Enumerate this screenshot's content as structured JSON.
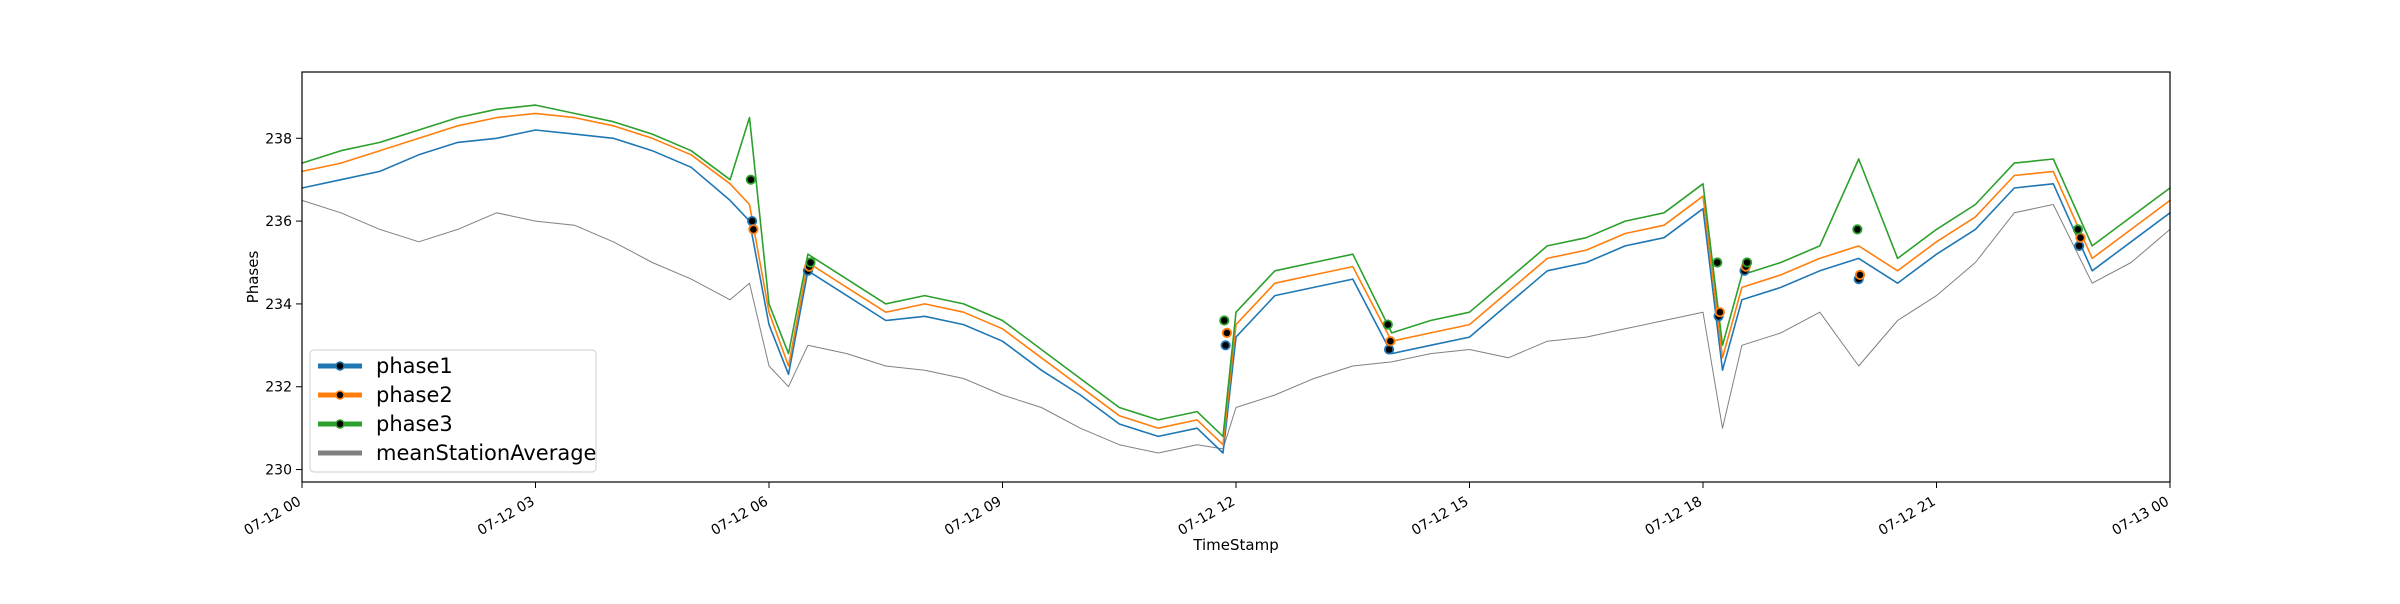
{
  "chart_data": {
    "type": "line",
    "title": "",
    "xlabel": "TimeStamp",
    "ylabel": "Phases",
    "x_range": [
      "2024-07-12T00:00",
      "2024-07-13T00:00"
    ],
    "ylim": [
      229.7,
      239.6
    ],
    "x_ticks": [
      {
        "value": "2024-07-12T00:00",
        "label": "07-12 00"
      },
      {
        "value": "2024-07-12T03:00",
        "label": "07-12 03"
      },
      {
        "value": "2024-07-12T06:00",
        "label": "07-12 06"
      },
      {
        "value": "2024-07-12T09:00",
        "label": "07-12 09"
      },
      {
        "value": "2024-07-12T12:00",
        "label": "07-12 12"
      },
      {
        "value": "2024-07-12T15:00",
        "label": "07-12 15"
      },
      {
        "value": "2024-07-12T18:00",
        "label": "07-12 18"
      },
      {
        "value": "2024-07-12T21:00",
        "label": "07-12 21"
      },
      {
        "value": "2024-07-13T00:00",
        "label": "07-13 00"
      }
    ],
    "y_ticks": [
      {
        "value": 230,
        "label": "230"
      },
      {
        "value": 232,
        "label": "232"
      },
      {
        "value": 234,
        "label": "234"
      },
      {
        "value": 236,
        "label": "236"
      },
      {
        "value": 238,
        "label": "238"
      }
    ],
    "grid": false,
    "legend_position": "lower-left",
    "series": [
      {
        "name": "phase1",
        "color": "#1f77b4",
        "x": [
          "2024-07-12T00:00",
          "2024-07-12T00:30",
          "2024-07-12T01:00",
          "2024-07-12T01:30",
          "2024-07-12T02:00",
          "2024-07-12T02:30",
          "2024-07-12T03:00",
          "2024-07-12T03:30",
          "2024-07-12T04:00",
          "2024-07-12T04:30",
          "2024-07-12T05:00",
          "2024-07-12T05:30",
          "2024-07-12T05:45",
          "2024-07-12T06:00",
          "2024-07-12T06:15",
          "2024-07-12T06:30",
          "2024-07-12T07:00",
          "2024-07-12T07:30",
          "2024-07-12T08:00",
          "2024-07-12T08:30",
          "2024-07-12T09:00",
          "2024-07-12T09:30",
          "2024-07-12T10:00",
          "2024-07-12T10:30",
          "2024-07-12T11:00",
          "2024-07-12T11:30",
          "2024-07-12T11:50",
          "2024-07-12T12:00",
          "2024-07-12T12:30",
          "2024-07-12T13:00",
          "2024-07-12T13:30",
          "2024-07-12T14:00",
          "2024-07-12T14:30",
          "2024-07-12T15:00",
          "2024-07-12T15:30",
          "2024-07-12T16:00",
          "2024-07-12T16:30",
          "2024-07-12T17:00",
          "2024-07-12T17:30",
          "2024-07-12T18:00",
          "2024-07-12T18:15",
          "2024-07-12T18:30",
          "2024-07-12T19:00",
          "2024-07-12T19:30",
          "2024-07-12T20:00",
          "2024-07-12T20:30",
          "2024-07-12T21:00",
          "2024-07-12T21:30",
          "2024-07-12T22:00",
          "2024-07-12T22:30",
          "2024-07-12T23:00",
          "2024-07-12T23:30",
          "2024-07-13T00:00"
        ],
        "values": [
          236.8,
          237.0,
          237.2,
          237.6,
          237.9,
          238.0,
          238.2,
          238.1,
          238.0,
          237.7,
          237.3,
          236.5,
          236.0,
          233.5,
          232.3,
          234.8,
          234.2,
          233.6,
          233.7,
          233.5,
          233.1,
          232.4,
          231.8,
          231.1,
          230.8,
          231.0,
          230.4,
          233.2,
          234.2,
          234.4,
          234.6,
          232.8,
          233.0,
          233.2,
          234.0,
          234.8,
          235.0,
          235.4,
          235.6,
          236.3,
          232.4,
          234.1,
          234.4,
          234.8,
          235.1,
          234.5,
          235.2,
          235.8,
          236.8,
          236.9,
          234.8,
          235.5,
          236.2
        ],
        "marker_points": [
          {
            "x": "2024-07-12T05:47",
            "y": 236.0
          },
          {
            "x": "2024-07-12T06:30",
            "y": 234.8
          },
          {
            "x": "2024-07-12T11:52",
            "y": 233.0
          },
          {
            "x": "2024-07-12T13:58",
            "y": 232.9
          },
          {
            "x": "2024-07-12T18:12",
            "y": 233.7
          },
          {
            "x": "2024-07-12T18:32",
            "y": 234.8
          },
          {
            "x": "2024-07-12T20:00",
            "y": 234.6
          },
          {
            "x": "2024-07-12T22:50",
            "y": 235.4
          }
        ]
      },
      {
        "name": "phase2",
        "color": "#ff7f0e",
        "x": [
          "2024-07-12T00:00",
          "2024-07-12T00:30",
          "2024-07-12T01:00",
          "2024-07-12T01:30",
          "2024-07-12T02:00",
          "2024-07-12T02:30",
          "2024-07-12T03:00",
          "2024-07-12T03:30",
          "2024-07-12T04:00",
          "2024-07-12T04:30",
          "2024-07-12T05:00",
          "2024-07-12T05:30",
          "2024-07-12T05:45",
          "2024-07-12T06:00",
          "2024-07-12T06:15",
          "2024-07-12T06:30",
          "2024-07-12T07:00",
          "2024-07-12T07:30",
          "2024-07-12T08:00",
          "2024-07-12T08:30",
          "2024-07-12T09:00",
          "2024-07-12T09:30",
          "2024-07-12T10:00",
          "2024-07-12T10:30",
          "2024-07-12T11:00",
          "2024-07-12T11:30",
          "2024-07-12T11:50",
          "2024-07-12T12:00",
          "2024-07-12T12:30",
          "2024-07-12T13:00",
          "2024-07-12T13:30",
          "2024-07-12T14:00",
          "2024-07-12T14:30",
          "2024-07-12T15:00",
          "2024-07-12T15:30",
          "2024-07-12T16:00",
          "2024-07-12T16:30",
          "2024-07-12T17:00",
          "2024-07-12T17:30",
          "2024-07-12T18:00",
          "2024-07-12T18:15",
          "2024-07-12T18:30",
          "2024-07-12T19:00",
          "2024-07-12T19:30",
          "2024-07-12T20:00",
          "2024-07-12T20:30",
          "2024-07-12T21:00",
          "2024-07-12T21:30",
          "2024-07-12T22:00",
          "2024-07-12T22:30",
          "2024-07-12T23:00",
          "2024-07-12T23:30",
          "2024-07-13T00:00"
        ],
        "values": [
          237.2,
          237.4,
          237.7,
          238.0,
          238.3,
          238.5,
          238.6,
          238.5,
          238.3,
          238.0,
          237.6,
          236.9,
          236.4,
          233.8,
          232.5,
          235.0,
          234.4,
          233.8,
          234.0,
          233.8,
          233.4,
          232.7,
          232.0,
          231.3,
          231.0,
          231.2,
          230.6,
          233.5,
          234.5,
          234.7,
          234.9,
          233.1,
          233.3,
          233.5,
          234.3,
          235.1,
          235.3,
          235.7,
          235.9,
          236.6,
          232.7,
          234.4,
          234.7,
          235.1,
          235.4,
          234.8,
          235.5,
          236.1,
          237.1,
          237.2,
          235.1,
          235.8,
          236.5
        ],
        "marker_points": [
          {
            "x": "2024-07-12T05:48",
            "y": 235.8
          },
          {
            "x": "2024-07-12T06:31",
            "y": 234.9
          },
          {
            "x": "2024-07-12T11:53",
            "y": 233.3
          },
          {
            "x": "2024-07-12T13:59",
            "y": 233.1
          },
          {
            "x": "2024-07-12T18:13",
            "y": 233.8
          },
          {
            "x": "2024-07-12T18:33",
            "y": 234.9
          },
          {
            "x": "2024-07-12T20:01",
            "y": 234.7
          },
          {
            "x": "2024-07-12T22:51",
            "y": 235.6
          }
        ]
      },
      {
        "name": "phase3",
        "color": "#2ca02c",
        "x": [
          "2024-07-12T00:00",
          "2024-07-12T00:30",
          "2024-07-12T01:00",
          "2024-07-12T01:30",
          "2024-07-12T02:00",
          "2024-07-12T02:30",
          "2024-07-12T03:00",
          "2024-07-12T03:30",
          "2024-07-12T04:00",
          "2024-07-12T04:30",
          "2024-07-12T05:00",
          "2024-07-12T05:30",
          "2024-07-12T05:45",
          "2024-07-12T06:00",
          "2024-07-12T06:15",
          "2024-07-12T06:30",
          "2024-07-12T07:00",
          "2024-07-12T07:30",
          "2024-07-12T08:00",
          "2024-07-12T08:30",
          "2024-07-12T09:00",
          "2024-07-12T09:30",
          "2024-07-12T10:00",
          "2024-07-12T10:30",
          "2024-07-12T11:00",
          "2024-07-12T11:30",
          "2024-07-12T11:50",
          "2024-07-12T12:00",
          "2024-07-12T12:30",
          "2024-07-12T13:00",
          "2024-07-12T13:30",
          "2024-07-12T14:00",
          "2024-07-12T14:30",
          "2024-07-12T15:00",
          "2024-07-12T15:30",
          "2024-07-12T16:00",
          "2024-07-12T16:30",
          "2024-07-12T17:00",
          "2024-07-12T17:30",
          "2024-07-12T18:00",
          "2024-07-12T18:15",
          "2024-07-12T18:30",
          "2024-07-12T19:00",
          "2024-07-12T19:30",
          "2024-07-12T20:00",
          "2024-07-12T20:30",
          "2024-07-12T21:00",
          "2024-07-12T21:30",
          "2024-07-12T22:00",
          "2024-07-12T22:30",
          "2024-07-12T23:00",
          "2024-07-12T23:30",
          "2024-07-13T00:00"
        ],
        "values": [
          237.4,
          237.7,
          237.9,
          238.2,
          238.5,
          238.7,
          238.8,
          238.6,
          238.4,
          238.1,
          237.7,
          237.0,
          238.5,
          234.0,
          232.8,
          235.2,
          234.6,
          234.0,
          234.2,
          234.0,
          233.6,
          232.9,
          232.2,
          231.5,
          231.2,
          231.4,
          230.8,
          233.8,
          234.8,
          235.0,
          235.2,
          233.3,
          233.6,
          233.8,
          234.6,
          235.4,
          235.6,
          236.0,
          236.2,
          236.9,
          233.0,
          234.7,
          235.0,
          235.4,
          237.5,
          235.1,
          235.8,
          236.4,
          237.4,
          237.5,
          235.4,
          236.1,
          236.8
        ],
        "marker_points": [
          {
            "x": "2024-07-12T05:46",
            "y": 237.0
          },
          {
            "x": "2024-07-12T06:32",
            "y": 235.0
          },
          {
            "x": "2024-07-12T11:51",
            "y": 233.6
          },
          {
            "x": "2024-07-12T13:57",
            "y": 233.5
          },
          {
            "x": "2024-07-12T18:11",
            "y": 235.0
          },
          {
            "x": "2024-07-12T18:34",
            "y": 235.0
          },
          {
            "x": "2024-07-12T19:59",
            "y": 235.8
          },
          {
            "x": "2024-07-12T22:49",
            "y": 235.8
          }
        ]
      },
      {
        "name": "meanStationAverage",
        "color": "#808080",
        "x": [
          "2024-07-12T00:00",
          "2024-07-12T00:30",
          "2024-07-12T01:00",
          "2024-07-12T01:30",
          "2024-07-12T02:00",
          "2024-07-12T02:30",
          "2024-07-12T03:00",
          "2024-07-12T03:30",
          "2024-07-12T04:00",
          "2024-07-12T04:30",
          "2024-07-12T05:00",
          "2024-07-12T05:30",
          "2024-07-12T05:45",
          "2024-07-12T06:00",
          "2024-07-12T06:15",
          "2024-07-12T06:30",
          "2024-07-12T07:00",
          "2024-07-12T07:30",
          "2024-07-12T08:00",
          "2024-07-12T08:30",
          "2024-07-12T09:00",
          "2024-07-12T09:30",
          "2024-07-12T10:00",
          "2024-07-12T10:30",
          "2024-07-12T11:00",
          "2024-07-12T11:30",
          "2024-07-12T11:50",
          "2024-07-12T12:00",
          "2024-07-12T12:30",
          "2024-07-12T13:00",
          "2024-07-12T13:30",
          "2024-07-12T14:00",
          "2024-07-12T14:30",
          "2024-07-12T15:00",
          "2024-07-12T15:30",
          "2024-07-12T16:00",
          "2024-07-12T16:30",
          "2024-07-12T17:00",
          "2024-07-12T17:30",
          "2024-07-12T18:00",
          "2024-07-12T18:15",
          "2024-07-12T18:30",
          "2024-07-12T19:00",
          "2024-07-12T19:30",
          "2024-07-12T20:00",
          "2024-07-12T20:30",
          "2024-07-12T21:00",
          "2024-07-12T21:30",
          "2024-07-12T22:00",
          "2024-07-12T22:30",
          "2024-07-12T23:00",
          "2024-07-12T23:30",
          "2024-07-13T00:00"
        ],
        "values": [
          236.5,
          236.2,
          235.8,
          235.5,
          235.8,
          236.2,
          236.0,
          235.9,
          235.5,
          235.0,
          234.6,
          234.1,
          234.5,
          232.5,
          232.0,
          233.0,
          232.8,
          232.5,
          232.4,
          232.2,
          231.8,
          231.5,
          231.0,
          230.6,
          230.4,
          230.6,
          230.5,
          231.5,
          231.8,
          232.2,
          232.5,
          232.6,
          232.8,
          232.9,
          232.7,
          233.1,
          233.2,
          233.4,
          233.6,
          233.8,
          231.0,
          233.0,
          233.3,
          233.8,
          232.5,
          233.6,
          234.2,
          235.0,
          236.2,
          236.4,
          234.5,
          235.0,
          235.8
        ]
      }
    ]
  }
}
